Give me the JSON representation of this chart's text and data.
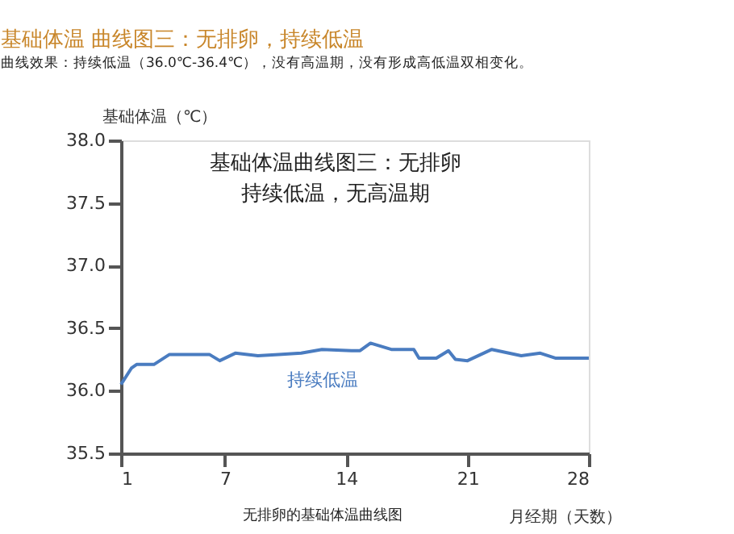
{
  "chart_data": {
    "type": "line",
    "title": "基础体温 曲线图三：无排卵，持续低温",
    "subtitle": "曲线效果：持续低温（36.0℃-36.4℃），没有高温期，没有形成高低温双相变化。",
    "xlabel": "月经期（天数）",
    "ylabel": "基础体温（℃）",
    "x": [
      1,
      1.6,
      1.9,
      2.9,
      3.8,
      6.1,
      6.7,
      7.6,
      8.9,
      10.1,
      11.4,
      12.6,
      14.3,
      14.8,
      15.4,
      16.6,
      17.9,
      18.2,
      19.2,
      19.9,
      20.3,
      21.0,
      22.4,
      24.1,
      25.2,
      26.1,
      27.5,
      28
    ],
    "series": [
      {
        "color": "#4a7cc0",
        "values": [
          36.05,
          36.18,
          36.21,
          36.21,
          36.29,
          36.29,
          36.24,
          36.3,
          36.28,
          36.29,
          36.3,
          36.33,
          36.32,
          36.32,
          36.38,
          36.33,
          36.33,
          36.26,
          36.26,
          36.32,
          36.25,
          36.24,
          36.33,
          36.28,
          36.3,
          36.26,
          36.26,
          36.26
        ]
      }
    ],
    "xlim": [
      1,
      28
    ],
    "xticks": [
      1,
      7,
      14,
      21,
      28
    ],
    "ylim": [
      35.5,
      38.0
    ],
    "yticks": [
      35.5,
      {
        "value": 36,
        "label": "36.0"
      },
      36.5,
      {
        "value": 37,
        "label": "37.0"
      },
      37.5,
      {
        "value": 38,
        "label": "38.0"
      }
    ],
    "annotations": [
      "基础体温曲线图三：无排卵",
      "持续低温，无高温期",
      "持续低温",
      "无排卵的基础体温曲线图"
    ],
    "grid": false,
    "marker": "none",
    "line_style": "solid"
  }
}
